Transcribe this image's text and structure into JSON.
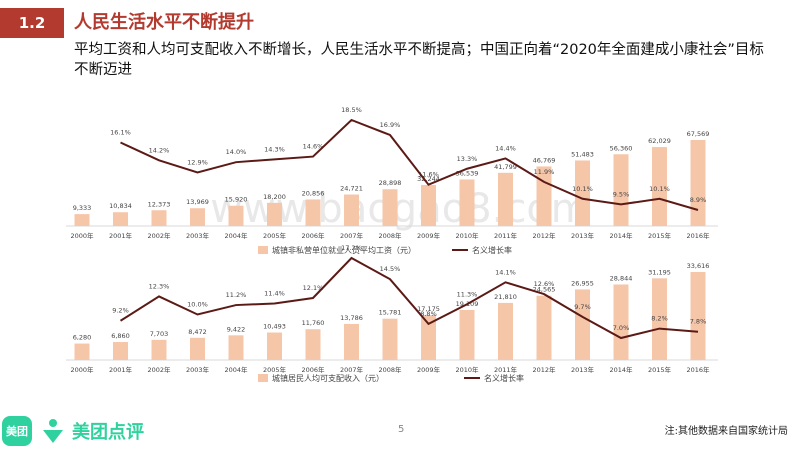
{
  "header": {
    "section_number": "1.2",
    "section_title": "人民生活水平不断提升",
    "headline": "平均工资和人均可支配收入不断增长，人民生活水平不断提高；中国正向着“2020年全面建成小康社会”目标不断迈进"
  },
  "watermark": "www.baogao8.com",
  "footer": {
    "logo_badge": "美团",
    "logo_text": "美团点评",
    "page_number": "5",
    "source_note": "注:其他数据来自国家统计局"
  },
  "colors": {
    "accent": "#b33a2e",
    "bar": "#f6c6a8",
    "line": "#5c1a16",
    "brand": "#2fd29e"
  },
  "chart_data": [
    {
      "type": "bar",
      "categories": [
        "2000年",
        "2001年",
        "2002年",
        "2003年",
        "2004年",
        "2005年",
        "2006年",
        "2007年",
        "2008年",
        "2009年",
        "2010年",
        "2011年",
        "2012年",
        "2013年",
        "2014年",
        "2015年",
        "2016年"
      ],
      "series": [
        {
          "name": "城镇非私营单位就业人员平均工资（元）",
          "type": "bar",
          "values": [
            9333,
            10834,
            12373,
            13969,
            15920,
            18200,
            20856,
            24721,
            28898,
            32244,
            36539,
            41799,
            46769,
            51483,
            56360,
            62029,
            67569
          ],
          "labels": [
            "9,333",
            "10,834",
            "12,373",
            "13,969",
            "15,920",
            "18,200",
            "20,856",
            "24,721",
            "28,898",
            "32,244",
            "36,539",
            "41,799",
            "46,769",
            "51,483",
            "56,360",
            "62,029",
            "67,569"
          ]
        },
        {
          "name": "名义增长率",
          "type": "line",
          "values": [
            null,
            16.1,
            14.2,
            12.9,
            14.0,
            14.3,
            14.6,
            18.5,
            16.9,
            11.6,
            13.3,
            14.4,
            11.9,
            10.1,
            9.5,
            10.1,
            8.9
          ],
          "labels": [
            "",
            "16.1%",
            "14.2%",
            "12.9%",
            "14.0%",
            "14.3%",
            "14.6%",
            "18.5%",
            "16.9%",
            "11.6%",
            "13.3%",
            "14.4%",
            "11.9%",
            "10.1%",
            "9.5%",
            "10.1%",
            "8.9%"
          ]
        }
      ]
    },
    {
      "type": "bar",
      "categories": [
        "2000年",
        "2001年",
        "2002年",
        "2003年",
        "2004年",
        "2005年",
        "2006年",
        "2007年",
        "2008年",
        "2009年",
        "2010年",
        "2011年",
        "2012年",
        "2013年",
        "2014年",
        "2015年",
        "2016年"
      ],
      "series": [
        {
          "name": "城镇居民人均可支配收入（元）",
          "type": "bar",
          "values": [
            6280,
            6860,
            7703,
            8472,
            9422,
            10493,
            11760,
            13786,
            15781,
            17175,
            19109,
            21810,
            24565,
            26955,
            28844,
            31195,
            33616
          ],
          "labels": [
            "6,280",
            "6,860",
            "7,703",
            "8,472",
            "9,422",
            "10,493",
            "11,760",
            "13,786",
            "15,781",
            "17,175",
            "19,109",
            "21,810",
            "24,565",
            "26,955",
            "28,844",
            "31,195",
            "33,616"
          ]
        },
        {
          "name": "名义增长率",
          "type": "line",
          "values": [
            null,
            9.2,
            12.3,
            10.0,
            11.2,
            11.4,
            12.1,
            17.2,
            14.5,
            8.8,
            11.3,
            14.1,
            12.6,
            9.7,
            7.0,
            8.2,
            7.8
          ],
          "labels": [
            "",
            "9.2%",
            "12.3%",
            "10.0%",
            "11.2%",
            "11.4%",
            "12.1%",
            "17.2%",
            "14.5%",
            "8.8%",
            "11.3%",
            "14.1%",
            "12.6%",
            "9.7%",
            "7.0%",
            "8.2%",
            "7.8%"
          ]
        }
      ]
    }
  ]
}
